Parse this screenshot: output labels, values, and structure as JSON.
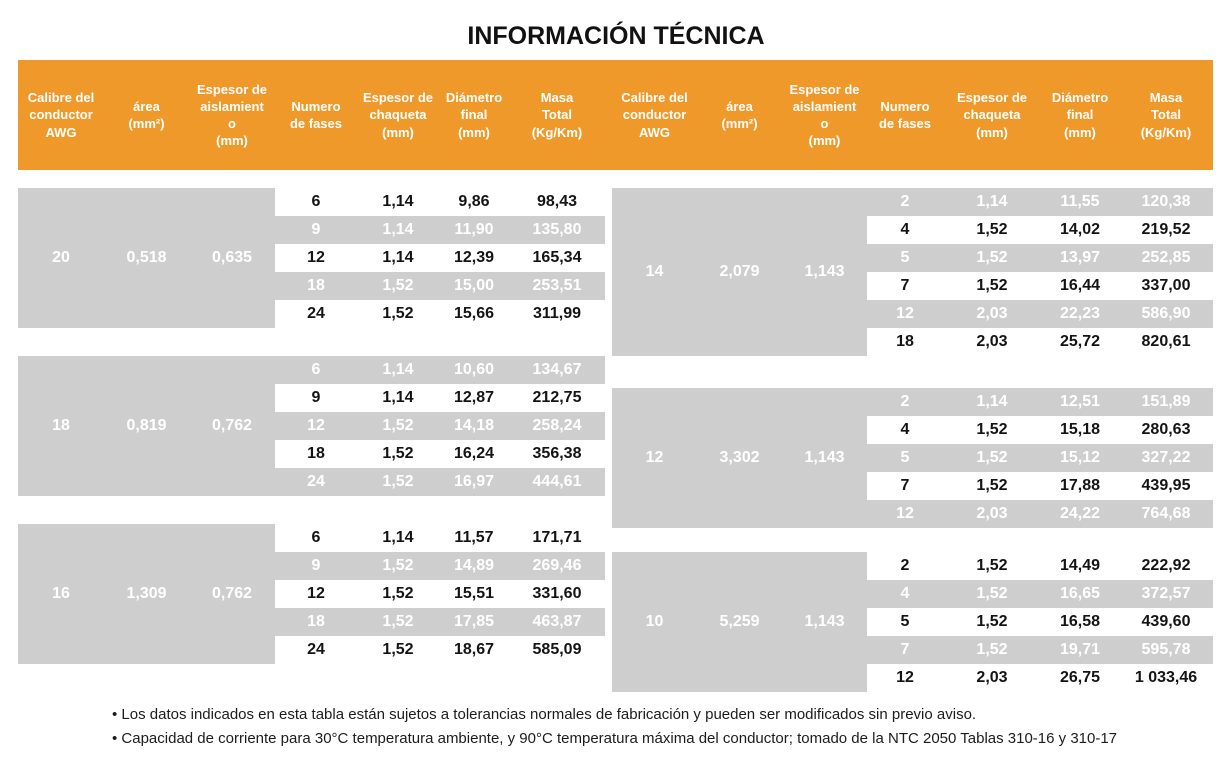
{
  "title": "INFORMACIÓN TÉCNICA",
  "colors": {
    "accent_orange": "#F0992B",
    "block_gray": "#CFCECE",
    "text_on_gray": "#FFFFFF",
    "text_on_white": "#141414"
  },
  "header_labels": [
    "Calibre del\nconductor\nAWG",
    "área\n(mm²)",
    "Espesor de\naislamient\no\n(mm)",
    "Numero\nde fases",
    "Espesor de\nchaqueta\n(mm)",
    "Diámetro\nfinal\n(mm)",
    "Masa\nTotal\n(Kg/Km)"
  ],
  "left_table": {
    "groups": [
      {
        "awg": "20",
        "area": "0,518",
        "aislamiento": "0,635",
        "rows": [
          [
            "6",
            "1,14",
            "9,86",
            "98,43"
          ],
          [
            "9",
            "1,14",
            "11,90",
            "135,80"
          ],
          [
            "12",
            "1,14",
            "12,39",
            "165,34"
          ],
          [
            "18",
            "1,52",
            "15,00",
            "253,51"
          ],
          [
            "24",
            "1,52",
            "15,66",
            "311,99"
          ]
        ]
      },
      {
        "awg": "18",
        "area": "0,819",
        "aislamiento": "0,762",
        "rows": [
          [
            "6",
            "1,14",
            "10,60",
            "134,67"
          ],
          [
            "9",
            "1,14",
            "12,87",
            "212,75"
          ],
          [
            "12",
            "1,52",
            "14,18",
            "258,24"
          ],
          [
            "18",
            "1,52",
            "16,24",
            "356,38"
          ],
          [
            "24",
            "1,52",
            "16,97",
            "444,61"
          ]
        ]
      },
      {
        "awg": "16",
        "area": "1,309",
        "aislamiento": "0,762",
        "rows": [
          [
            "6",
            "1,14",
            "11,57",
            "171,71"
          ],
          [
            "9",
            "1,52",
            "14,89",
            "269,46"
          ],
          [
            "12",
            "1,52",
            "15,51",
            "331,60"
          ],
          [
            "18",
            "1,52",
            "17,85",
            "463,87"
          ],
          [
            "24",
            "1,52",
            "18,67",
            "585,09"
          ]
        ]
      }
    ]
  },
  "right_table": {
    "groups": [
      {
        "awg": "14",
        "area": "2,079",
        "aislamiento": "1,143",
        "rows": [
          [
            "2",
            "1,14",
            "11,55",
            "120,38"
          ],
          [
            "4",
            "1,52",
            "14,02",
            "219,52"
          ],
          [
            "5",
            "1,52",
            "13,97",
            "252,85"
          ],
          [
            "7",
            "1,52",
            "16,44",
            "337,00"
          ],
          [
            "12",
            "2,03",
            "22,23",
            "586,90"
          ],
          [
            "18",
            "2,03",
            "25,72",
            "820,61"
          ]
        ]
      },
      {
        "awg": "12",
        "area": "3,302",
        "aislamiento": "1,143",
        "rows": [
          [
            "2",
            "1,14",
            "12,51",
            "151,89"
          ],
          [
            "4",
            "1,52",
            "15,18",
            "280,63"
          ],
          [
            "5",
            "1,52",
            "15,12",
            "327,22"
          ],
          [
            "7",
            "1,52",
            "17,88",
            "439,95"
          ],
          [
            "12",
            "2,03",
            "24,22",
            "764,68"
          ]
        ]
      },
      {
        "awg": "10",
        "area": "5,259",
        "aislamiento": "1,143",
        "rows": [
          [
            "2",
            "1,52",
            "14,49",
            "222,92"
          ],
          [
            "4",
            "1,52",
            "16,65",
            "372,57"
          ],
          [
            "5",
            "1,52",
            "16,58",
            "439,60"
          ],
          [
            "7",
            "1,52",
            "19,71",
            "595,78"
          ],
          [
            "12",
            "2,03",
            "26,75",
            "1 033,46"
          ]
        ]
      }
    ]
  },
  "notes": [
    "• Los datos indicados en esta tabla están sujetos a tolerancias normales de fabricación y pueden ser modificados sin previo aviso.",
    "• Capacidad de corriente para 30°C temperatura ambiente, y 90°C temperatura máxima del conductor; tomado de la NTC 2050 Tablas 310-16 y 310-17"
  ]
}
